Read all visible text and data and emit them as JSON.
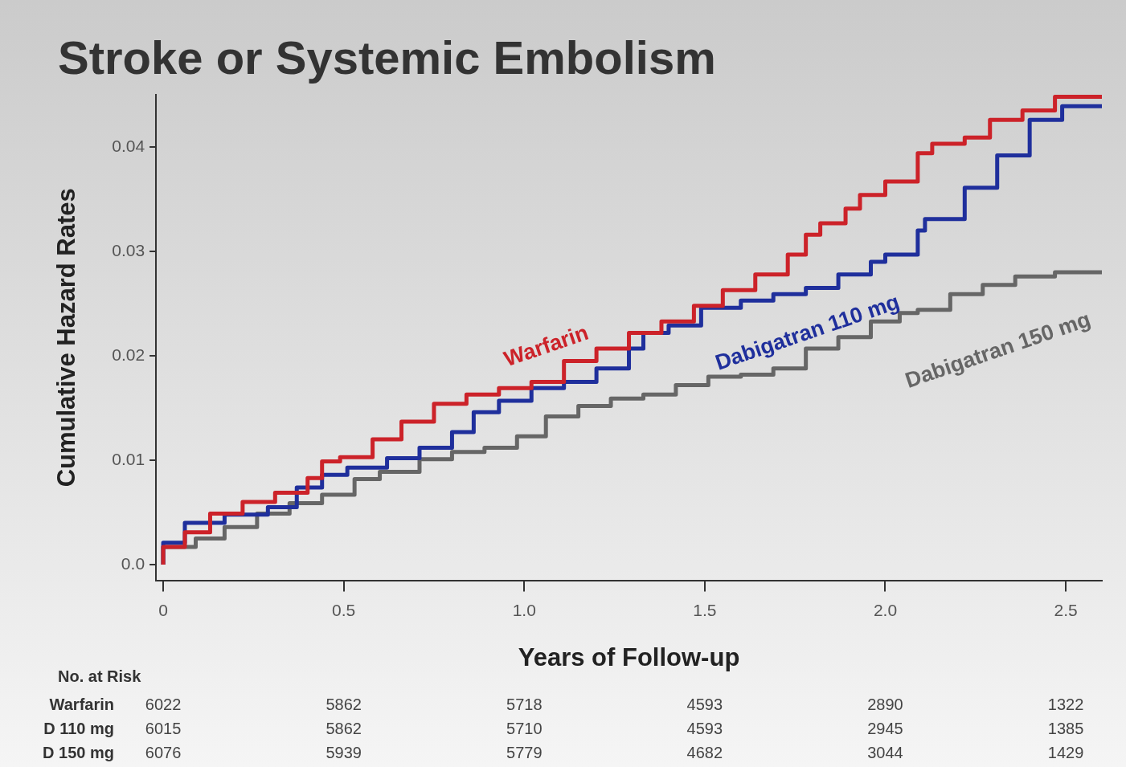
{
  "chart_data": {
    "type": "step",
    "title": "Stroke or Systemic Embolism",
    "xlabel": "Years of Follow-up",
    "ylabel": "Cumulative Hazard Rates",
    "xlim": [
      -0.02,
      2.6
    ],
    "xticks": [
      0,
      0.5,
      {
        "value": 1,
        "label": "1.0"
      },
      1.5,
      {
        "value": 2,
        "label": "2.0"
      },
      2.5
    ],
    "ylim": [
      -0.0015,
      0.045
    ],
    "yticks": [
      {
        "value": 0,
        "label": "0.0"
      },
      0.01,
      0.02,
      0.03,
      0.04
    ],
    "grid": false,
    "legend": false,
    "line_style": "solid",
    "marker": "none",
    "series": [
      {
        "name": "Warfarin",
        "color": "#cc2229",
        "x": [
          0,
          0.06,
          0.13,
          0.22,
          0.31,
          0.4,
          0.44,
          0.49,
          0.58,
          0.66,
          0.75,
          0.84,
          0.93,
          1.02,
          1.11,
          1.2,
          1.29,
          1.38,
          1.47,
          1.55,
          1.64,
          1.73,
          1.78,
          1.82,
          1.89,
          1.93,
          2.0,
          2.09,
          2.13,
          2.22,
          2.29,
          2.38,
          2.47,
          2.51,
          2.6
        ],
        "values": [
          0,
          0.0017,
          0.0031,
          0.0049,
          0.006,
          0.0069,
          0.0083,
          0.0099,
          0.0103,
          0.012,
          0.0137,
          0.0154,
          0.0163,
          0.0169,
          0.0175,
          0.0195,
          0.0207,
          0.0222,
          0.0233,
          0.0248,
          0.0263,
          0.0278,
          0.0297,
          0.0316,
          0.0327,
          0.0341,
          0.0354,
          0.0367,
          0.0394,
          0.0403,
          0.0409,
          0.0426,
          0.0435,
          0.0448,
          0.0448
        ]
      },
      {
        "name": "Dabigatran 110 mg",
        "color": "#1f2f9c",
        "x": [
          0,
          0.06,
          0.17,
          0.29,
          0.37,
          0.44,
          0.51,
          0.62,
          0.71,
          0.8,
          0.86,
          0.93,
          1.02,
          1.11,
          1.2,
          1.29,
          1.33,
          1.4,
          1.49,
          1.6,
          1.69,
          1.78,
          1.87,
          1.96,
          2.0,
          2.09,
          2.11,
          2.22,
          2.31,
          2.4,
          2.49,
          2.53,
          2.6
        ],
        "values": [
          0,
          0.0021,
          0.004,
          0.0048,
          0.0055,
          0.0074,
          0.0086,
          0.0093,
          0.0102,
          0.0112,
          0.0127,
          0.0146,
          0.0157,
          0.0169,
          0.0175,
          0.0188,
          0.0207,
          0.0222,
          0.0229,
          0.0246,
          0.0253,
          0.0259,
          0.0265,
          0.0278,
          0.029,
          0.0297,
          0.032,
          0.0331,
          0.0361,
          0.0392,
          0.0426,
          0.0439,
          0.0439
        ]
      },
      {
        "name": "Dabigatran 150 mg",
        "color": "#666666",
        "x": [
          0,
          0.09,
          0.17,
          0.26,
          0.35,
          0.44,
          0.53,
          0.6,
          0.71,
          0.8,
          0.89,
          0.98,
          1.06,
          1.15,
          1.24,
          1.33,
          1.42,
          1.51,
          1.6,
          1.69,
          1.78,
          1.87,
          1.96,
          2.04,
          2.09,
          2.18,
          2.27,
          2.36,
          2.47,
          2.6
        ],
        "values": [
          0,
          0.0017,
          0.0025,
          0.0036,
          0.0049,
          0.0059,
          0.0067,
          0.0082,
          0.0089,
          0.0101,
          0.0108,
          0.0112,
          0.0123,
          0.0142,
          0.0152,
          0.0159,
          0.0163,
          0.0172,
          0.018,
          0.0182,
          0.0188,
          0.0207,
          0.0218,
          0.0233,
          0.0241,
          0.0244,
          0.0259,
          0.0268,
          0.0276,
          0.028
        ]
      }
    ],
    "annotations": [
      "No. at Risk",
      "Warfarin",
      "6022",
      "5862",
      "5718",
      "4593",
      "2890",
      "1322",
      "D 110 mg",
      "6015",
      "5862",
      "5710",
      "4593",
      "2945",
      "1385",
      "D 150 mg",
      "6076",
      "5939",
      "5779",
      "4682",
      "3044",
      "1429"
    ]
  }
}
